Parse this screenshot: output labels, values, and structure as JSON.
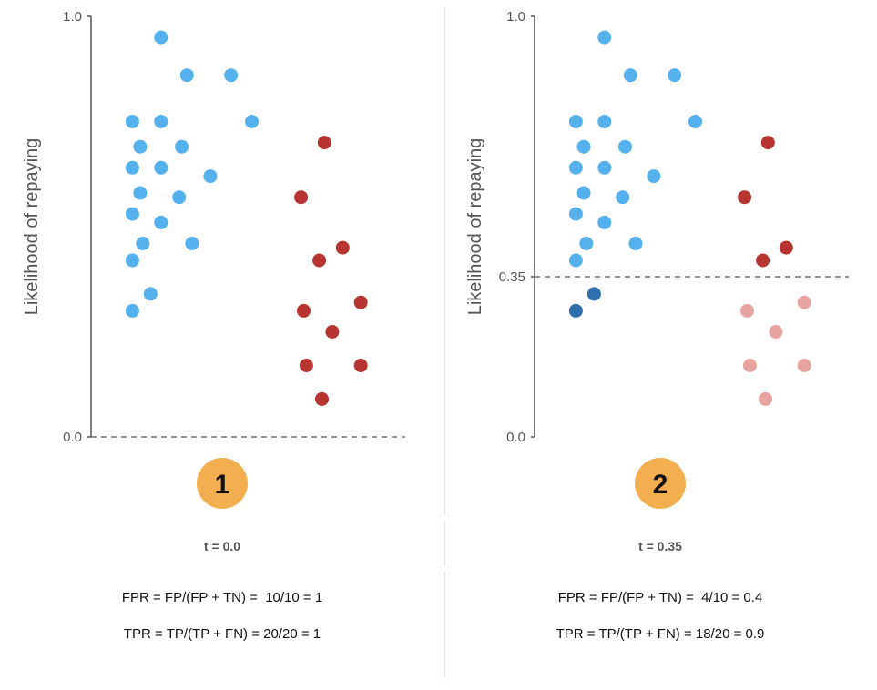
{
  "colors": {
    "positive": "#55b0ee",
    "positive_below_threshold": "#2f6fad",
    "negative": "#b83430",
    "negative_below_threshold": "#e8a3a0",
    "badge": "#f3ae4f",
    "axis": "#555555",
    "divider": "#cccccc"
  },
  "chart_data": [
    {
      "type": "scatter",
      "ylabel": "Likelihood of repaying",
      "ylim": [
        0,
        1
      ],
      "yticks": [
        "1.0",
        "0.0"
      ],
      "threshold": 0.0,
      "badge": "1",
      "threshold_label": "t = 0.0",
      "fpr_formula": "FPR = FP/(FP + TN) =  10/10 = 1",
      "tpr_formula": "TPR = TP/(TP + FN) = 20/20 = 1",
      "series": [
        {
          "class": "positive",
          "points": [
            {
              "x": 0.15,
              "y": 0.95
            },
            {
              "x": 0.25,
              "y": 0.86
            },
            {
              "x": 0.42,
              "y": 0.86
            },
            {
              "x": 0.04,
              "y": 0.75
            },
            {
              "x": 0.15,
              "y": 0.75
            },
            {
              "x": 0.5,
              "y": 0.75
            },
            {
              "x": 0.07,
              "y": 0.69
            },
            {
              "x": 0.23,
              "y": 0.69
            },
            {
              "x": 0.04,
              "y": 0.64
            },
            {
              "x": 0.15,
              "y": 0.64
            },
            {
              "x": 0.34,
              "y": 0.62
            },
            {
              "x": 0.07,
              "y": 0.58
            },
            {
              "x": 0.22,
              "y": 0.57
            },
            {
              "x": 0.04,
              "y": 0.53
            },
            {
              "x": 0.15,
              "y": 0.51
            },
            {
              "x": 0.08,
              "y": 0.46
            },
            {
              "x": 0.27,
              "y": 0.46
            },
            {
              "x": 0.04,
              "y": 0.42
            },
            {
              "x": 0.11,
              "y": 0.34
            },
            {
              "x": 0.04,
              "y": 0.3
            }
          ]
        },
        {
          "class": "negative",
          "points": [
            {
              "x": 0.78,
              "y": 0.7
            },
            {
              "x": 0.69,
              "y": 0.57
            },
            {
              "x": 0.85,
              "y": 0.45
            },
            {
              "x": 0.76,
              "y": 0.42
            },
            {
              "x": 0.92,
              "y": 0.32
            },
            {
              "x": 0.7,
              "y": 0.3
            },
            {
              "x": 0.81,
              "y": 0.25
            },
            {
              "x": 0.71,
              "y": 0.17
            },
            {
              "x": 0.92,
              "y": 0.17
            },
            {
              "x": 0.77,
              "y": 0.09
            }
          ]
        }
      ]
    },
    {
      "type": "scatter",
      "ylabel": "Likelihood of repaying",
      "ylim": [
        0,
        1
      ],
      "yticks": [
        "1.0",
        "0.35",
        "0.0"
      ],
      "threshold": 0.35,
      "badge": "2",
      "threshold_label": "t = 0.35",
      "fpr_formula": "FPR = FP/(FP + TN) =  4/10 = 0.4",
      "tpr_formula": "TPR = TP/(TP + FN) = 18/20 = 0.9",
      "series": [
        {
          "class": "positive",
          "points": [
            {
              "x": 0.15,
              "y": 0.95
            },
            {
              "x": 0.25,
              "y": 0.86
            },
            {
              "x": 0.42,
              "y": 0.86
            },
            {
              "x": 0.04,
              "y": 0.75
            },
            {
              "x": 0.15,
              "y": 0.75
            },
            {
              "x": 0.5,
              "y": 0.75
            },
            {
              "x": 0.07,
              "y": 0.69
            },
            {
              "x": 0.23,
              "y": 0.69
            },
            {
              "x": 0.04,
              "y": 0.64
            },
            {
              "x": 0.15,
              "y": 0.64
            },
            {
              "x": 0.34,
              "y": 0.62
            },
            {
              "x": 0.07,
              "y": 0.58
            },
            {
              "x": 0.22,
              "y": 0.57
            },
            {
              "x": 0.04,
              "y": 0.53
            },
            {
              "x": 0.15,
              "y": 0.51
            },
            {
              "x": 0.08,
              "y": 0.46
            },
            {
              "x": 0.27,
              "y": 0.46
            },
            {
              "x": 0.04,
              "y": 0.42
            },
            {
              "x": 0.11,
              "y": 0.34
            },
            {
              "x": 0.04,
              "y": 0.3
            }
          ]
        },
        {
          "class": "negative",
          "points": [
            {
              "x": 0.78,
              "y": 0.7
            },
            {
              "x": 0.69,
              "y": 0.57
            },
            {
              "x": 0.85,
              "y": 0.45
            },
            {
              "x": 0.76,
              "y": 0.42
            },
            {
              "x": 0.92,
              "y": 0.32
            },
            {
              "x": 0.7,
              "y": 0.3
            },
            {
              "x": 0.81,
              "y": 0.25
            },
            {
              "x": 0.71,
              "y": 0.17
            },
            {
              "x": 0.92,
              "y": 0.17
            },
            {
              "x": 0.77,
              "y": 0.09
            }
          ]
        }
      ]
    }
  ]
}
